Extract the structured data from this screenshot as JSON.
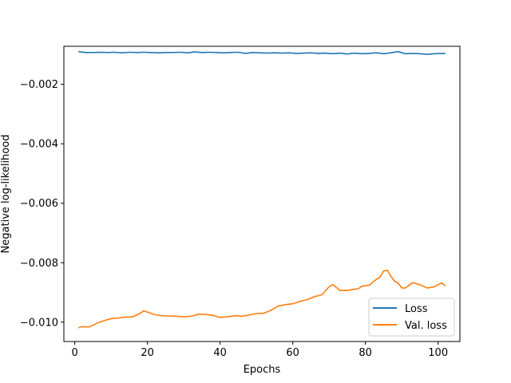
{
  "chart_data": {
    "type": "line",
    "xlabel": "Epochs",
    "ylabel": "Negative log-likelihood",
    "xlim": [
      -3,
      106
    ],
    "ylim": [
      -0.01065,
      -0.00072
    ],
    "xticks": [
      0,
      20,
      40,
      60,
      80,
      100
    ],
    "xtick_labels": [
      "0",
      "20",
      "40",
      "60",
      "80",
      "100"
    ],
    "yticks": [
      -0.002,
      -0.004,
      -0.006,
      -0.008,
      -0.01
    ],
    "ytick_labels": [
      "−0.002",
      "−0.004",
      "−0.006",
      "−0.008",
      "−0.010"
    ],
    "legend_position": "lower-right",
    "grid": false,
    "series": [
      {
        "name": "Loss",
        "color": "#1f77b4",
        "points": [
          [
            1,
            -0.0009
          ],
          [
            3,
            -0.00093
          ],
          [
            5,
            -0.00093
          ],
          [
            7,
            -0.00092
          ],
          [
            9,
            -0.00093
          ],
          [
            11,
            -0.00092
          ],
          [
            13,
            -0.00094
          ],
          [
            15,
            -0.00092
          ],
          [
            17,
            -0.00093
          ],
          [
            19,
            -0.00092
          ],
          [
            21,
            -0.00093
          ],
          [
            23,
            -0.00094
          ],
          [
            25,
            -0.00093
          ],
          [
            27,
            -0.00093
          ],
          [
            29,
            -0.00092
          ],
          [
            31,
            -0.00094
          ],
          [
            33,
            -0.00091
          ],
          [
            35,
            -0.00093
          ],
          [
            37,
            -0.00092
          ],
          [
            39,
            -0.00093
          ],
          [
            41,
            -0.00094
          ],
          [
            43,
            -0.00093
          ],
          [
            45,
            -0.00092
          ],
          [
            47,
            -0.00096
          ],
          [
            49,
            -0.00093
          ],
          [
            51,
            -0.00094
          ],
          [
            53,
            -0.00095
          ],
          [
            55,
            -0.00094
          ],
          [
            57,
            -0.00095
          ],
          [
            59,
            -0.00094
          ],
          [
            61,
            -0.00096
          ],
          [
            63,
            -0.00095
          ],
          [
            65,
            -0.00094
          ],
          [
            67,
            -0.00096
          ],
          [
            69,
            -0.00095
          ],
          [
            71,
            -0.00097
          ],
          [
            73,
            -0.00095
          ],
          [
            75,
            -0.00098
          ],
          [
            77,
            -0.00095
          ],
          [
            79,
            -0.00097
          ],
          [
            81,
            -0.00096
          ],
          [
            83,
            -0.00094
          ],
          [
            85,
            -0.00097
          ],
          [
            87,
            -0.00094
          ],
          [
            89,
            -0.0009
          ],
          [
            91,
            -0.00097
          ],
          [
            93,
            -0.00096
          ],
          [
            95,
            -0.00097
          ],
          [
            97,
            -0.00099
          ],
          [
            99,
            -0.00097
          ],
          [
            102,
            -0.00096
          ]
        ]
      },
      {
        "name": "Val. loss",
        "color": "#ff7f0e",
        "points": [
          [
            1,
            -0.01019
          ],
          [
            2,
            -0.01015
          ],
          [
            4,
            -0.01016
          ],
          [
            6,
            -0.01004
          ],
          [
            8,
            -0.00995
          ],
          [
            10,
            -0.00988
          ],
          [
            12,
            -0.00986
          ],
          [
            14,
            -0.00983
          ],
          [
            16,
            -0.00982
          ],
          [
            18,
            -0.0097
          ],
          [
            19,
            -0.00962
          ],
          [
            20,
            -0.00966
          ],
          [
            22,
            -0.00975
          ],
          [
            24,
            -0.00978
          ],
          [
            26,
            -0.00979
          ],
          [
            28,
            -0.0098
          ],
          [
            30,
            -0.00982
          ],
          [
            32,
            -0.0098
          ],
          [
            34,
            -0.00973
          ],
          [
            36,
            -0.00974
          ],
          [
            38,
            -0.00977
          ],
          [
            40,
            -0.00984
          ],
          [
            42,
            -0.00982
          ],
          [
            44,
            -0.00978
          ],
          [
            46,
            -0.0098
          ],
          [
            48,
            -0.00976
          ],
          [
            50,
            -0.00971
          ],
          [
            52,
            -0.0097
          ],
          [
            54,
            -0.0096
          ],
          [
            56,
            -0.00945
          ],
          [
            58,
            -0.00941
          ],
          [
            60,
            -0.00938
          ],
          [
            62,
            -0.0093
          ],
          [
            64,
            -0.00924
          ],
          [
            66,
            -0.00914
          ],
          [
            68,
            -0.00908
          ],
          [
            70,
            -0.00881
          ],
          [
            71,
            -0.00874
          ],
          [
            73,
            -0.00893
          ],
          [
            75,
            -0.00893
          ],
          [
            77,
            -0.00889
          ],
          [
            78,
            -0.00888
          ],
          [
            79,
            -0.00879
          ],
          [
            81,
            -0.00876
          ],
          [
            83,
            -0.00856
          ],
          [
            84,
            -0.00849
          ],
          [
            85,
            -0.00828
          ],
          [
            86,
            -0.00825
          ],
          [
            87,
            -0.00845
          ],
          [
            88,
            -0.00862
          ],
          [
            89,
            -0.00868
          ],
          [
            90,
            -0.00885
          ],
          [
            91,
            -0.00885
          ],
          [
            93,
            -0.00867
          ],
          [
            95,
            -0.00874
          ],
          [
            97,
            -0.00885
          ],
          [
            99,
            -0.00881
          ],
          [
            101,
            -0.00868
          ],
          [
            102,
            -0.00878
          ]
        ]
      }
    ]
  }
}
